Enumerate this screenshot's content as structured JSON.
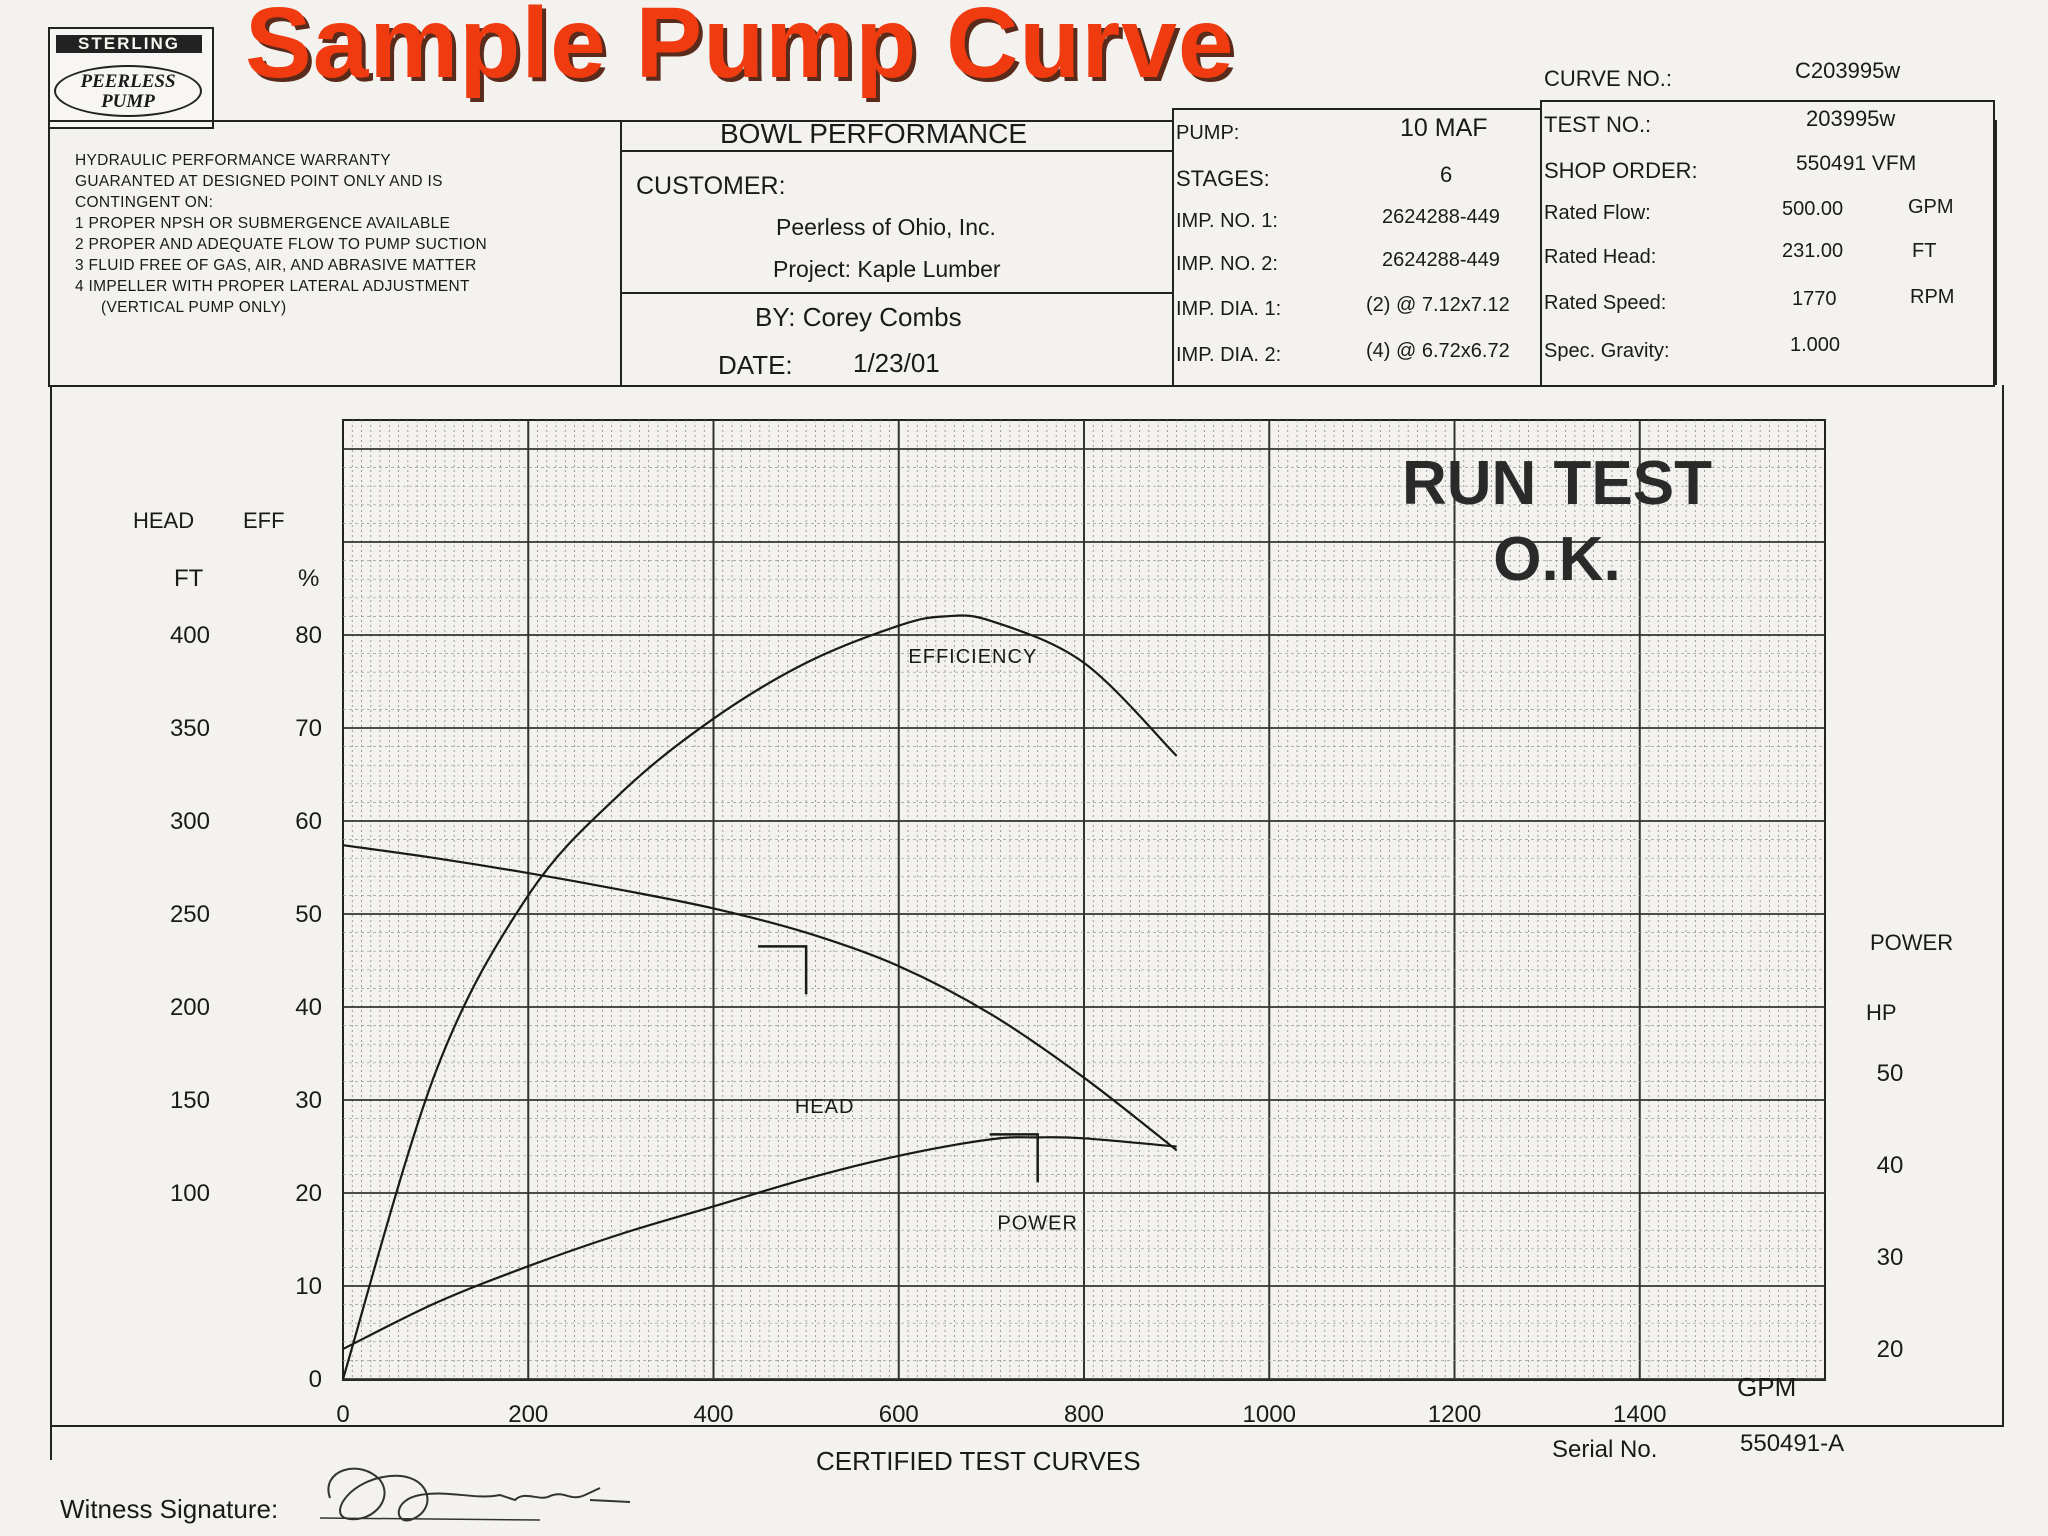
{
  "slide_title": "Sample  Pump Curve",
  "logo": {
    "top_text": "STERLING",
    "oval_text_line1": "PEERLESS",
    "oval_text_line2": "PUMP"
  },
  "warranty": {
    "lines": [
      "HYDRAULIC PERFORMANCE WARRANTY",
      "GUARANTED AT DESIGNED POINT ONLY AND IS",
      "CONTINGENT ON:",
      "1 PROPER NPSH OR SUBMERGENCE AVAILABLE",
      "2 PROPER AND ADEQUATE FLOW TO PUMP SUCTION",
      "3 FLUID FREE OF GAS, AIR, AND ABRASIVE MATTER",
      "4 IMPELLER WITH PROPER LATERAL ADJUSTMENT",
      "(VERTICAL PUMP ONLY)"
    ]
  },
  "bowl": {
    "heading": "BOWL PERFORMANCE",
    "customer_label": "CUSTOMER:",
    "customer_name": "Peerless of Ohio, Inc.",
    "project": "Project: Kaple Lumber",
    "by": "BY:  Corey Combs",
    "date_label": "DATE:",
    "date_value": "1/23/01"
  },
  "pump_info": [
    {
      "label": "PUMP:",
      "value": "10 MAF"
    },
    {
      "label": "STAGES:",
      "value": "6"
    },
    {
      "label": "IMP.  NO. 1:",
      "value": "2624288-449"
    },
    {
      "label": "IMP.  NO. 2:",
      "value": "2624288-449"
    },
    {
      "label": "IMP. DIA. 1:",
      "value": "(2) @ 7.12x7.12"
    },
    {
      "label": "IMP. DIA. 2:",
      "value": "(4) @ 6.72x6.72"
    }
  ],
  "curve_info": {
    "curve_no_label": "CURVE NO.:",
    "curve_no_value": "C203995w",
    "test_no_label": "TEST NO.:",
    "test_no_value": "203995w",
    "shop_order_label": "SHOP ORDER:",
    "shop_order_value": "550491 VFM",
    "rows": [
      {
        "label": "Rated Flow:",
        "value": "500.00",
        "unit": "GPM"
      },
      {
        "label": "Rated Head:",
        "value": "231.00",
        "unit": "FT"
      },
      {
        "label": "Rated Speed:",
        "value": "1770",
        "unit": "RPM"
      },
      {
        "label": "Spec. Gravity:",
        "value": "1.000",
        "unit": ""
      }
    ]
  },
  "stamp": {
    "line1": "RUN TEST",
    "line2": "O.K."
  },
  "footer": {
    "certified": "CERTIFIED TEST CURVES",
    "serial_label": "Serial No.",
    "serial_value": "550491-A",
    "witness_label": "Witness Signature:"
  },
  "chart_data": {
    "type": "line",
    "xlabel": "GPM",
    "x_ticks": [
      0,
      200,
      400,
      600,
      800,
      1000,
      1200,
      1400
    ],
    "xlim": [
      0,
      1600
    ],
    "left_axes": {
      "head_label": [
        "HEAD",
        "FT"
      ],
      "eff_label": [
        "EFF",
        "%"
      ],
      "head_ticks": [
        100,
        150,
        200,
        250,
        300,
        350,
        400
      ],
      "eff_ticks": [
        0,
        10,
        20,
        30,
        40,
        50,
        60,
        70,
        80
      ],
      "head_range": [
        0,
        400
      ],
      "eff_range": [
        0,
        80
      ]
    },
    "right_axis": {
      "label": [
        "POWER",
        "HP"
      ],
      "ticks": [
        20,
        30,
        40,
        50
      ],
      "range": [
        20,
        50
      ]
    },
    "grid": true,
    "series": [
      {
        "name": "EFFICIENCY",
        "axis": "eff",
        "x": [
          0,
          100,
          200,
          300,
          400,
          500,
          600,
          650,
          700,
          800,
          900
        ],
        "y": [
          0,
          33,
          52,
          63,
          71,
          77,
          81,
          82,
          81.5,
          77,
          67
        ]
      },
      {
        "name": "HEAD",
        "axis": "head",
        "x": [
          0,
          100,
          200,
          300,
          400,
          500,
          600,
          700,
          800,
          900
        ],
        "y": [
          287,
          280,
          272,
          263,
          253,
          240,
          222,
          196,
          162,
          123
        ]
      },
      {
        "name": "POWER",
        "axis": "power",
        "x": [
          0,
          100,
          200,
          300,
          400,
          500,
          600,
          700,
          750,
          800,
          900
        ],
        "y": [
          20,
          25,
          29,
          32.5,
          35.5,
          38.5,
          41,
          42.8,
          43,
          42.9,
          42
        ]
      }
    ],
    "rated_point_markers": [
      {
        "series": "HEAD",
        "x": 500,
        "y": 231
      },
      {
        "series": "POWER",
        "x": 750,
        "y": 43
      }
    ]
  }
}
